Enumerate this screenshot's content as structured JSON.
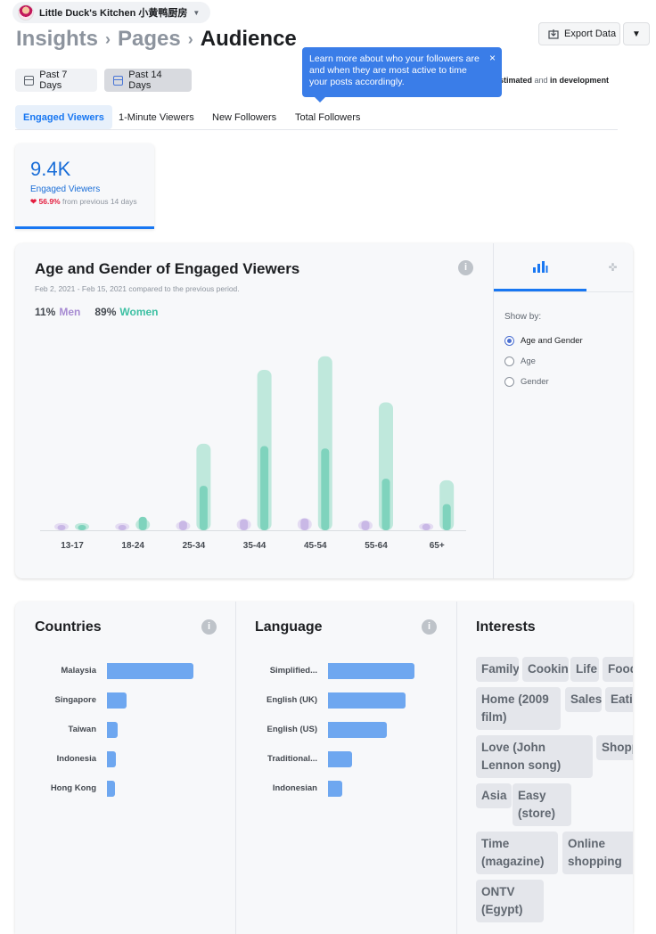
{
  "page": {
    "name": "Little Duck's Kitchen 小黄鸭厨房"
  },
  "breadcrumb": [
    "Insights",
    "Pages",
    "Audience"
  ],
  "toolbar": {
    "export_label": "Export Data"
  },
  "date_ranges": [
    {
      "label": "Past 7 Days",
      "selected": false
    },
    {
      "label": "Past 14 Days",
      "selected": true
    }
  ],
  "estimated_note": {
    "part1": "stimated",
    "part2": " and ",
    "part3": "in development"
  },
  "tooltip": {
    "text": "Learn more about who your followers are and when they are most active to time your posts accordingly.",
    "close": "×"
  },
  "metric_tabs": [
    {
      "label": "Engaged Viewers",
      "active": true
    },
    {
      "label": "1-Minute Viewers",
      "active": false
    },
    {
      "label": "New Followers",
      "active": false
    },
    {
      "label": "Total Followers",
      "active": false
    }
  ],
  "summary": {
    "value": "9.4K",
    "label": "Engaged Viewers",
    "change_pct": "56.9%",
    "change_text": " from previous 14 days",
    "change_icon": "❤"
  },
  "age_gender": {
    "title": "Age and Gender of Engaged Viewers",
    "subtitle": "Feb 2, 2021 - Feb 15, 2021 compared to the previous period.",
    "men_pct": "11%",
    "men_label": "Men",
    "women_pct": "89%",
    "women_label": "Women",
    "show_by_label": "Show by:",
    "show_by_options": [
      {
        "label": "Age and Gender",
        "selected": true
      },
      {
        "label": "Age",
        "selected": false
      },
      {
        "label": "Gender",
        "selected": false
      }
    ],
    "info": "i"
  },
  "chart_data": {
    "type": "bar",
    "categories": [
      "13-17",
      "18-24",
      "25-34",
      "35-44",
      "45-54",
      "55-64",
      "65+"
    ],
    "series": [
      {
        "name": "Men",
        "values": [
          0.3,
          0.6,
          1.2,
          1.4,
          1.5,
          1.2,
          0.8
        ],
        "prev_values": [
          0.4,
          0.6,
          1.1,
          1.4,
          1.5,
          1.2,
          0.9
        ]
      },
      {
        "name": "Women",
        "values": [
          0.4,
          1.7,
          5.6,
          10.6,
          10.3,
          6.5,
          3.3
        ],
        "prev_values": [
          0.4,
          1.4,
          10.9,
          20.2,
          21.9,
          16.1,
          6.3
        ]
      }
    ],
    "ylim": [
      0,
      23
    ],
    "colors": {
      "men": "#c9b8e6",
      "men_prev": "#e4dcf2",
      "women": "#7fd3bd",
      "women_prev": "#bfe8dc"
    }
  },
  "countries": {
    "title": "Countries",
    "info": "i",
    "items": [
      {
        "label": "Malaysia",
        "value": 1.0
      },
      {
        "label": "Singapore",
        "value": 0.23
      },
      {
        "label": "Taiwan",
        "value": 0.12
      },
      {
        "label": "Indonesia",
        "value": 0.1
      },
      {
        "label": "Hong Kong",
        "value": 0.09
      }
    ]
  },
  "language": {
    "title": "Language",
    "info": "i",
    "items": [
      {
        "label": "Simplified...",
        "value": 1.0
      },
      {
        "label": "English (UK)",
        "value": 0.9
      },
      {
        "label": "English (US)",
        "value": 0.68
      },
      {
        "label": "Traditional...",
        "value": 0.28
      },
      {
        "label": "Indonesian",
        "value": 0.16
      }
    ]
  },
  "interests": {
    "title": "Interests",
    "chips": [
      "Family",
      "Cooking",
      "Life",
      "Food",
      "Home (2009 film)",
      "Sales",
      "Eating",
      "Love (John Lennon song)",
      "Shopping",
      "Asia",
      "Easy (store)",
      "Time (magazine)",
      "Online shopping",
      "ONTV (Egypt)"
    ]
  }
}
